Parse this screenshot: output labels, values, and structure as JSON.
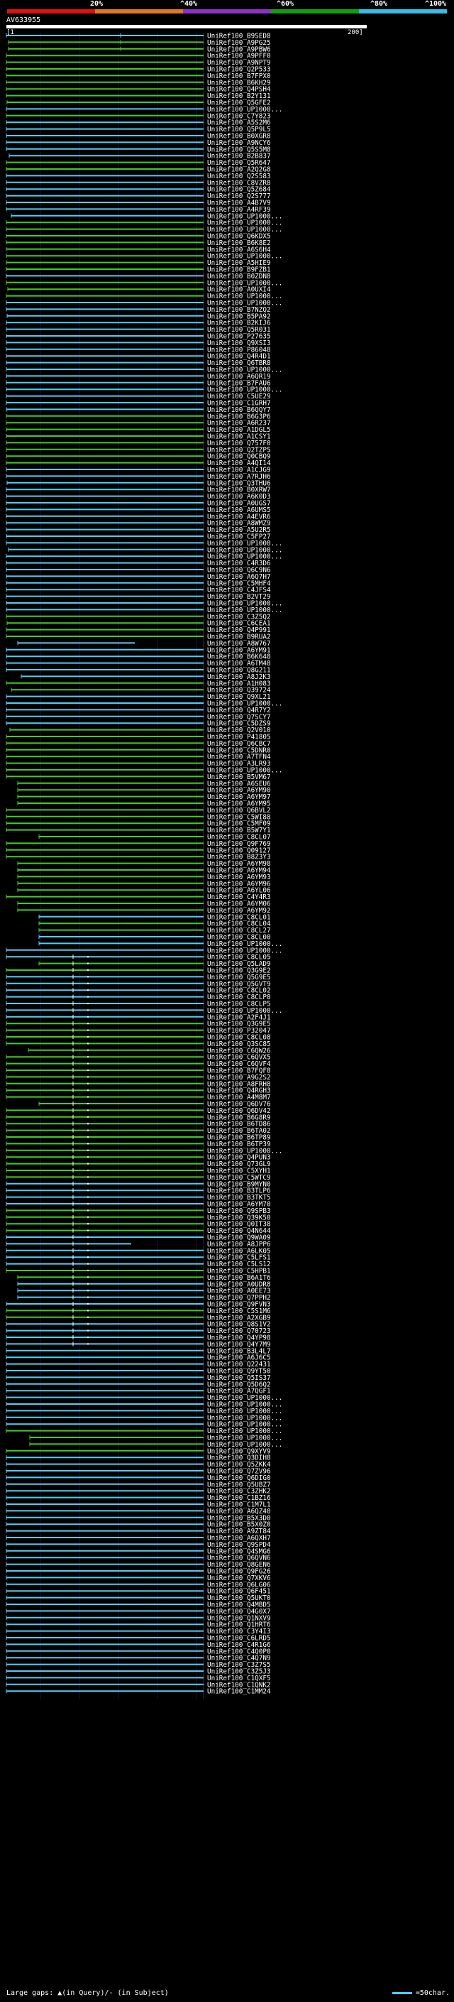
{
  "header": {
    "percent_labels": [
      "20%",
      "^40%",
      "^60%",
      "^80%",
      "^100%"
    ],
    "color_scale": [
      "#e01010",
      "#e07820",
      "#9030c8",
      "#10a010",
      "#30c0e8"
    ],
    "query_id": "AV633955",
    "scale_start": "[1",
    "scale_end": "200]"
  },
  "colors": {
    "cyan": "#55ccf0",
    "green": "#44cc22",
    "background": "#000000"
  },
  "hits": [
    "UniRef100_B9SED8",
    "UniRef100_A9PG25",
    "UniRef100_A9PBW6",
    "UniRef100_A9PFF0",
    "UniRef100_A9NPT9",
    "UniRef100_Q2P533",
    "UniRef100_B7FPX0",
    "UniRef100_B6KH29",
    "UniRef100_Q4PSH4",
    "UniRef100_B2Y131",
    "UniRef100_Q5GFE2",
    "UniRef100_UP1000...",
    "UniRef100_C7Y823",
    "UniRef100_A5S2M6",
    "UniRef100_Q5P9L5",
    "UniRef100_B0XGR8",
    "UniRef100_A9NCY6",
    "UniRef100_Q5S5M8",
    "UniRef100_B2B837",
    "UniRef100_Q5R647",
    "UniRef100_A2Q2G8",
    "UniRef100_Q2S583",
    "UniRef100_C8VZR8",
    "UniRef100_Q5Z684",
    "UniRef100_Q2S777",
    "UniRef100_A4B7V9",
    "UniRef100_A4RF39",
    "UniRef100_UP1000...",
    "UniRef100_UP1000...",
    "UniRef100_UP1000...",
    "UniRef100_Q6KDX5",
    "UniRef100_B6K8E2",
    "UniRef100_A6S6H4",
    "UniRef100_UP1000...",
    "UniRef100_A5HIE9",
    "UniRef100_B9FZB1",
    "UniRef100_B0ZDN8",
    "UniRef100_UP1000...",
    "UniRef100_A0UXI4",
    "UniRef100_UP1000...",
    "UniRef100_UP1000...",
    "UniRef100_B7NZQ2",
    "UniRef100_B5PA92",
    "UniRef100_B2KIJ6",
    "UniRef100_Q5R031",
    "UniRef100_P27635",
    "UniRef100_Q9XSI3",
    "UniRef100_P86048",
    "UniRef100_Q4R4D1",
    "UniRef100_Q6TBR8",
    "UniRef100_UP1000...",
    "UniRef100_A6QR19",
    "UniRef100_B7FAU6",
    "UniRef100_UP1000...",
    "UniRef100_C5UE29",
    "UniRef100_C1GRH7",
    "UniRef100_B6QQY7",
    "UniRef100_B6G3P6",
    "UniRef100_A6R237",
    "UniRef100_A1DGL5",
    "UniRef100_A1CSY1",
    "UniRef100_Q757F0",
    "UniRef100_Q2TZP5",
    "UniRef100_Q0CBQ9",
    "UniRef100_A4QI14",
    "UniRef100_A1CJG9",
    "UniRef100_A7RJH6",
    "UniRef100_Q3THU6",
    "UniRef100_B0XRW7",
    "UniRef100_A6K0D3",
    "UniRef100_A0UGS7",
    "UniRef100_A6UMS5",
    "UniRef100_A4EVR6",
    "UniRef100_A8WMZ9",
    "UniRef100_A5U2R5",
    "UniRef100_C5FP27",
    "UniRef100_UP1000...",
    "UniRef100_UP1000...",
    "UniRef100_UP1000...",
    "UniRef100_C4R3D6",
    "UniRef100_Q6C9N6",
    "UniRef100_A6Q7H7",
    "UniRef100_C5MHF4",
    "UniRef100_C4JFS4",
    "UniRef100_B2VT29",
    "UniRef100_UP1000...",
    "UniRef100_UP1000...",
    "UniRef100_C3Z5Q2",
    "UniRef100_C6CEA1",
    "UniRef100_Q4P991",
    "UniRef100_B9RUA2",
    "UniRef100_A8W767",
    "UniRef100_A6YM91",
    "UniRef100_B6K648",
    "UniRef100_A6TM48",
    "UniRef100_Q8G211",
    "UniRef100_A8J2K3",
    "UniRef100_A1H083",
    "UniRef100_Q39724",
    "UniRef100_Q9XL21",
    "UniRef100_UP1000...",
    "UniRef100_Q4R7Y2",
    "UniRef100_Q7SCY7",
    "UniRef100_C5DZS9",
    "UniRef100_Q2V010",
    "UniRef100_P41805",
    "UniRef100_Q6CBC7",
    "UniRef100_C5DNR0",
    "UniRef100_A7TFN4",
    "UniRef100_A3LR93",
    "UniRef100_UP1000...",
    "UniRef100_B5VM67",
    "UniRef100_A6SEU6",
    "UniRef100_A6YM90",
    "UniRef100_A6YM97",
    "UniRef100_A6YM95",
    "UniRef100_Q6BVL2",
    "UniRef100_C5WI88",
    "UniRef100_C5MF09",
    "UniRef100_B5W7Y1",
    "UniRef100_C8CL07",
    "UniRef100_Q9F769",
    "UniRef100_Q09127",
    "UniRef100_B8Z3Y3",
    "UniRef100_A6YM98",
    "UniRef100_A6YM94",
    "UniRef100_A6YM93",
    "UniRef100_A6YM96",
    "UniRef100_A6YL06",
    "UniRef100_C4Y4R3",
    "UniRef100_A6YM06",
    "UniRef100_A6YM92",
    "UniRef100_C8CL01",
    "UniRef100_C8CL04",
    "UniRef100_C8CL27",
    "UniRef100_C8CL00",
    "UniRef100_UP1000...",
    "UniRef100_UP1000...",
    "UniRef100_C8CL05",
    "UniRef100_Q5LAD9",
    "UniRef100_Q3G9E2",
    "UniRef100_Q5G9E5",
    "UniRef100_Q5GVT9",
    "UniRef100_C8CL02",
    "UniRef100_C8CLP8",
    "UniRef100_C8CLP5",
    "UniRef100_UP1000...",
    "UniRef100_A2F4J1",
    "UniRef100_Q3G9E5",
    "UniRef100_P32047",
    "UniRef100_C8CL08",
    "UniRef100_Q3SC85",
    "UniRef100_C6QW26",
    "UniRef100_C6QVX5",
    "UniRef100_C6QVF4",
    "UniRef100_B7FQF8",
    "UniRef100_A9G2S2",
    "UniRef100_A8FRH8",
    "UniRef100_Q4RGH3",
    "UniRef100_A4M8M7",
    "UniRef100_Q6DV76",
    "UniRef100_Q6DV42",
    "UniRef100_B6G8R9",
    "UniRef100_B6TD86",
    "UniRef100_B6TA02",
    "UniRef100_B6TP89",
    "UniRef100_B6TP39",
    "UniRef100_UP1000...",
    "UniRef100_Q4PUN3",
    "UniRef100_Q73GL9",
    "UniRef100_C5XYH1",
    "UniRef100_C5WTC9",
    "UniRef100_B9MYN0",
    "UniRef100_B3TLP6",
    "UniRef100_B3TKT5",
    "UniRef100_A6YM70",
    "UniRef100_Q9SPB3",
    "UniRef100_Q39K50",
    "UniRef100_Q0IT38",
    "UniRef100_Q4N644",
    "UniRef100_Q9WA09",
    "UniRef100_A8JPP6",
    "UniRef100_A6LK05",
    "UniRef100_C5LFS1",
    "UniRef100_C5LS12",
    "UniRef100_C5HPB1",
    "UniRef100_B6A1T6",
    "UniRef100_A0UDR8",
    "UniRef100_A0EE73",
    "UniRef100_Q7PPH2",
    "UniRef100_Q9FVN3",
    "UniRef100_C5S1M6",
    "UniRef100_A2XGB9",
    "UniRef100_Q8S1V2",
    "UniRef100_Q70723",
    "UniRef100_Q4YP98",
    "UniRef100_Q4Y7M9",
    "UniRef100_B3L4L7",
    "UniRef100_A6J6C5",
    "UniRef100_Q22431",
    "UniRef100_Q9YT50",
    "UniRef100_Q5IS37",
    "UniRef100_Q5D6Q2",
    "UniRef100_A7QGF1",
    "UniRef100_UP1000...",
    "UniRef100_UP1000...",
    "UniRef100_UP1000...",
    "UniRef100_UP1000...",
    "UniRef100_UP1000...",
    "UniRef100_UP1000...",
    "UniRef100_UP1000...",
    "UniRef100_UP1000...",
    "UniRef100_Q9XYV9",
    "UniRef100_Q3DIH8",
    "UniRef100_Q5ZKK4",
    "UniRef100_Q7ZV96",
    "UniRef100_Q6DIG0",
    "UniRef100_Q5UBZ7",
    "UniRef100_C3ZHK2",
    "UniRef100_C1BZ16",
    "UniRef100_C1M7L1",
    "UniRef100_A6QZ40",
    "UniRef100_B5X3D0",
    "UniRef100_B5X0Z0",
    "UniRef100_A9ZT84",
    "UniRef100_A6QXH7",
    "UniRef100_Q9SPD4",
    "UniRef100_Q4SMG6",
    "UniRef100_Q6QVN6",
    "UniRef100_Q8GEN6",
    "UniRef100_Q9FG26",
    "UniRef100_Q7XKV6",
    "UniRef100_Q6LG06",
    "UniRef100_Q6F451",
    "UniRef100_Q5UKT0",
    "UniRef100_Q4MBD5",
    "UniRef100_Q4G0X7",
    "UniRef100_Q1NXV9",
    "UniRef100_Q1HRT6",
    "UniRef100_C3Y4I3",
    "UniRef100_C6LRD5",
    "UniRef100_C4R1G6",
    "UniRef100_C4Q0P0",
    "UniRef100_C4Q7N9",
    "UniRef100_C3Z7S5",
    "UniRef100_C3Z5J3",
    "UniRef100_C1QXF5",
    "UniRef100_C1QNK2",
    "UniRef100_C1MM24"
  ],
  "footer": {
    "large_gaps": "Large gaps: ▲(in Query)/- (in Subject)",
    "scale_label": "=50char."
  }
}
